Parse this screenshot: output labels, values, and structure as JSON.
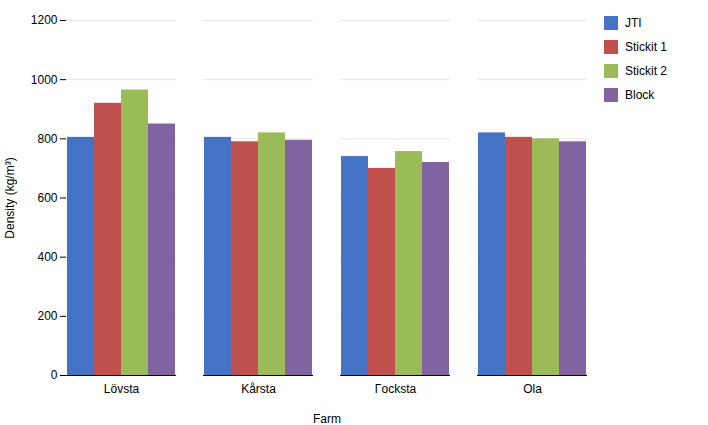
{
  "chart_data": {
    "type": "bar",
    "categories": [
      "Lövsta",
      "Kårsta",
      "Γocksta",
      "Ola"
    ],
    "series": [
      {
        "name": "JTI",
        "color": "#4472C4",
        "values": [
          805,
          805,
          740,
          820
        ]
      },
      {
        "name": "Stickit 1",
        "color": "#C0504D",
        "values": [
          920,
          790,
          700,
          805
        ]
      },
      {
        "name": "Stickit 2",
        "color": "#9BBB59",
        "values": [
          965,
          820,
          757,
          800
        ]
      },
      {
        "name": "Block",
        "color": "#8064A2",
        "values": [
          850,
          795,
          720,
          790
        ]
      }
    ],
    "xlabel": "Farm",
    "ylabel": "Density (kg/m³)",
    "ylim": [
      0,
      1200
    ],
    "yticks": [
      0,
      200,
      400,
      600,
      800,
      1000,
      1200
    ],
    "grid": true,
    "legend": "right"
  }
}
